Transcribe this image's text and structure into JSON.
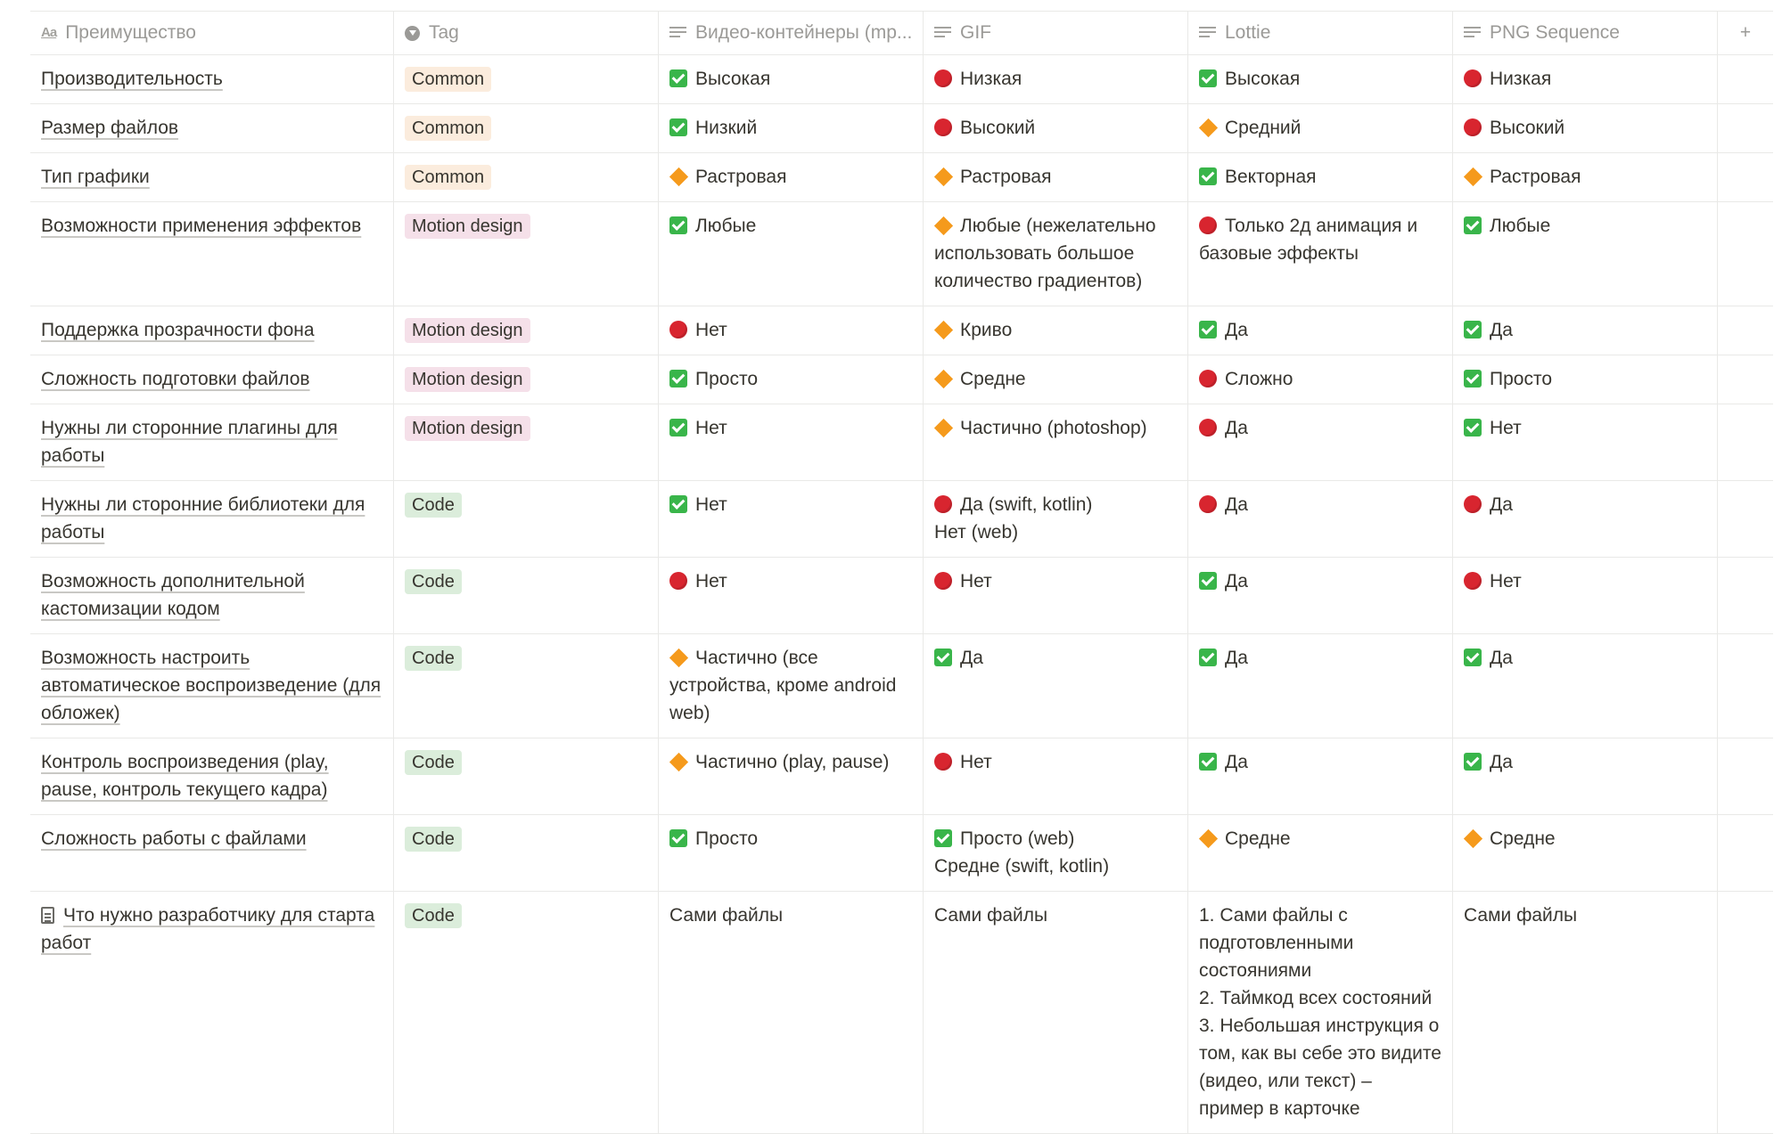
{
  "headers": {
    "name": "Преимущество",
    "name_icon": "Aa",
    "tag": "Tag",
    "c1": "Видео-контейнеры (mp...",
    "c2": "GIF",
    "c3": "Lottie",
    "c4": "PNG Sequence",
    "add": "+"
  },
  "rows": [
    {
      "name": "Производительность",
      "tag": "Common",
      "tagType": "common",
      "cells": [
        {
          "s": "yes",
          "t": "Высокая"
        },
        {
          "s": "no",
          "t": "Низкая"
        },
        {
          "s": "yes",
          "t": "Высокая"
        },
        {
          "s": "no",
          "t": "Низкая"
        }
      ]
    },
    {
      "name": "Размер файлов",
      "tag": "Common",
      "tagType": "common",
      "cells": [
        {
          "s": "yes",
          "t": "Низкий"
        },
        {
          "s": "no",
          "t": "Высокий"
        },
        {
          "s": "mid",
          "t": "Средний"
        },
        {
          "s": "no",
          "t": "Высокий"
        }
      ]
    },
    {
      "name": "Тип графики",
      "tag": "Common",
      "tagType": "common",
      "cells": [
        {
          "s": "mid",
          "t": "Растровая"
        },
        {
          "s": "mid",
          "t": "Растровая"
        },
        {
          "s": "yes",
          "t": "Векторная"
        },
        {
          "s": "mid",
          "t": "Растровая"
        }
      ]
    },
    {
      "name": "Возможности применения эффектов",
      "tag": "Motion design",
      "tagType": "motion",
      "cells": [
        {
          "s": "yes",
          "t": "Любые"
        },
        {
          "s": "mid",
          "t": "Любые (нежелательно использовать большое количество градиентов)"
        },
        {
          "s": "no",
          "t": "Только 2д анимация и базовые эффекты"
        },
        {
          "s": "yes",
          "t": "Любые"
        }
      ]
    },
    {
      "name": "Поддержка прозрачности фона",
      "tag": "Motion design",
      "tagType": "motion",
      "cells": [
        {
          "s": "no",
          "t": "Нет"
        },
        {
          "s": "mid",
          "t": "Криво"
        },
        {
          "s": "yes",
          "t": "Да"
        },
        {
          "s": "yes",
          "t": "Да"
        }
      ]
    },
    {
      "name": "Сложность подготовки файлов",
      "tag": "Motion design",
      "tagType": "motion",
      "cells": [
        {
          "s": "yes",
          "t": "Просто"
        },
        {
          "s": "mid",
          "t": "Средне"
        },
        {
          "s": "no",
          "t": "Сложно"
        },
        {
          "s": "yes",
          "t": "Просто"
        }
      ]
    },
    {
      "name": "Нужны ли сторонние плагины для работы",
      "tag": "Motion design",
      "tagType": "motion",
      "cells": [
        {
          "s": "yes",
          "t": "Нет"
        },
        {
          "s": "mid",
          "t": "Частично (photoshop)"
        },
        {
          "s": "no",
          "t": "Да"
        },
        {
          "s": "yes",
          "t": "Нет"
        }
      ]
    },
    {
      "name": "Нужны ли сторонние библиотеки для работы",
      "tag": "Code",
      "tagType": "code",
      "cells": [
        {
          "s": "yes",
          "t": "Нет"
        },
        {
          "s": "no",
          "t": "Да (swift, kotlin)\nНет (web)"
        },
        {
          "s": "no",
          "t": "Да"
        },
        {
          "s": "no",
          "t": "Да"
        }
      ]
    },
    {
      "name": "Возможность дополнительной кастомизации кодом",
      "tag": "Code",
      "tagType": "code",
      "cells": [
        {
          "s": "no",
          "t": "Нет"
        },
        {
          "s": "no",
          "t": "Нет"
        },
        {
          "s": "yes",
          "t": "Да"
        },
        {
          "s": "no",
          "t": "Нет"
        }
      ]
    },
    {
      "name": "Возможность настроить автоматическое воспроизведение (для обложек)",
      "tag": "Code",
      "tagType": "code",
      "cells": [
        {
          "s": "mid",
          "t": "Частично (все устройства, кроме android web)"
        },
        {
          "s": "yes",
          "t": "Да"
        },
        {
          "s": "yes",
          "t": "Да"
        },
        {
          "s": "yes",
          "t": "Да"
        }
      ]
    },
    {
      "name": "Контроль воспроизведения (play, pause, контроль текущего кадра)",
      "tag": "Code",
      "tagType": "code",
      "cells": [
        {
          "s": "mid",
          "t": "Частично (play, pause)"
        },
        {
          "s": "no",
          "t": "Нет"
        },
        {
          "s": "yes",
          "t": "Да"
        },
        {
          "s": "yes",
          "t": "Да"
        }
      ]
    },
    {
      "name": "Сложность работы с файлами",
      "tag": "Code",
      "tagType": "code",
      "cells": [
        {
          "s": "yes",
          "t": "Просто"
        },
        {
          "s": "yes",
          "t": "Просто (web)\nСредне (swift, kotlin)"
        },
        {
          "s": "mid",
          "t": "Средне"
        },
        {
          "s": "mid",
          "t": "Средне"
        }
      ]
    },
    {
      "name": "Что нужно разработчику для старта работ",
      "tag": "Code",
      "tagType": "code",
      "doc": true,
      "cells": [
        {
          "s": "",
          "t": "Сами файлы"
        },
        {
          "s": "",
          "t": "Сами файлы"
        },
        {
          "s": "",
          "t": "1. Сами файлы с подготовленными состояниями\n2. Таймкод всех состояний\n3. Небольшая инструкция о том, как вы себе это видите (видео, или текст) – пример в карточке"
        },
        {
          "s": "",
          "t": "Сами файлы"
        }
      ]
    }
  ]
}
